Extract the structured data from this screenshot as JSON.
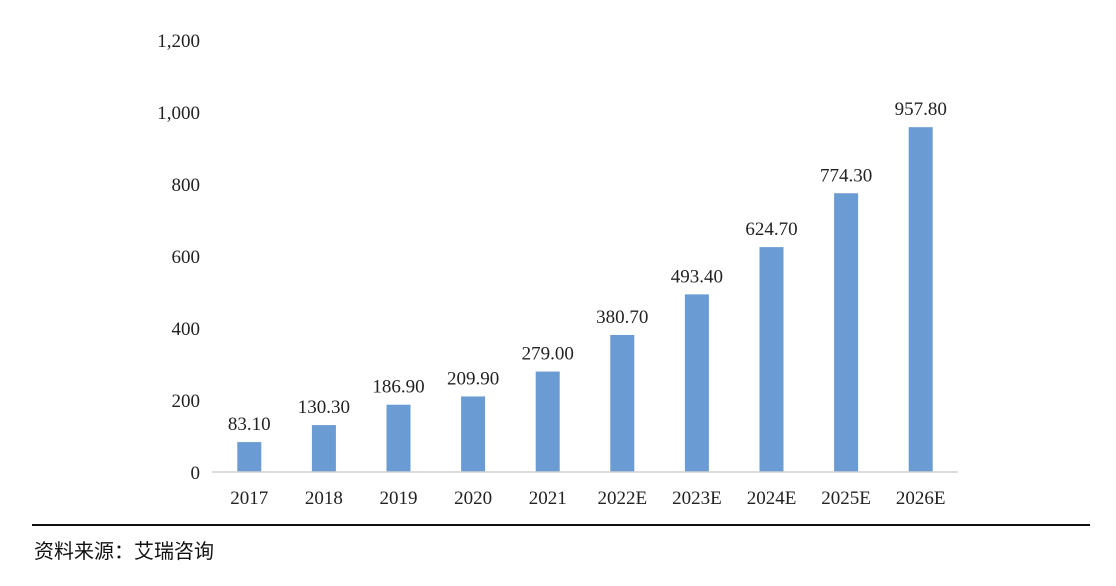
{
  "chart_data": {
    "type": "bar",
    "categories": [
      "2017",
      "2018",
      "2019",
      "2020",
      "2021",
      "2022E",
      "2023E",
      "2024E",
      "2025E",
      "2026E"
    ],
    "values": [
      83.1,
      130.3,
      186.9,
      209.9,
      279.0,
      380.7,
      493.4,
      624.7,
      774.3,
      957.8
    ],
    "data_labels": [
      "83.10",
      "130.30",
      "186.90",
      "209.90",
      "279.00",
      "380.70",
      "493.40",
      "624.70",
      "774.30",
      "957.80"
    ],
    "yticks": [
      0,
      200,
      400,
      600,
      800,
      1000,
      1200
    ],
    "ytick_labels": [
      "0",
      "200",
      "400",
      "600",
      "800",
      "1,000",
      "1,200"
    ],
    "ylim": [
      0,
      1200
    ],
    "grid": false,
    "legend": "none",
    "title": "",
    "xlabel": "",
    "ylabel": "",
    "bar_color": "#6a9bd3"
  },
  "source_note": "资料来源：艾瑞咨询"
}
